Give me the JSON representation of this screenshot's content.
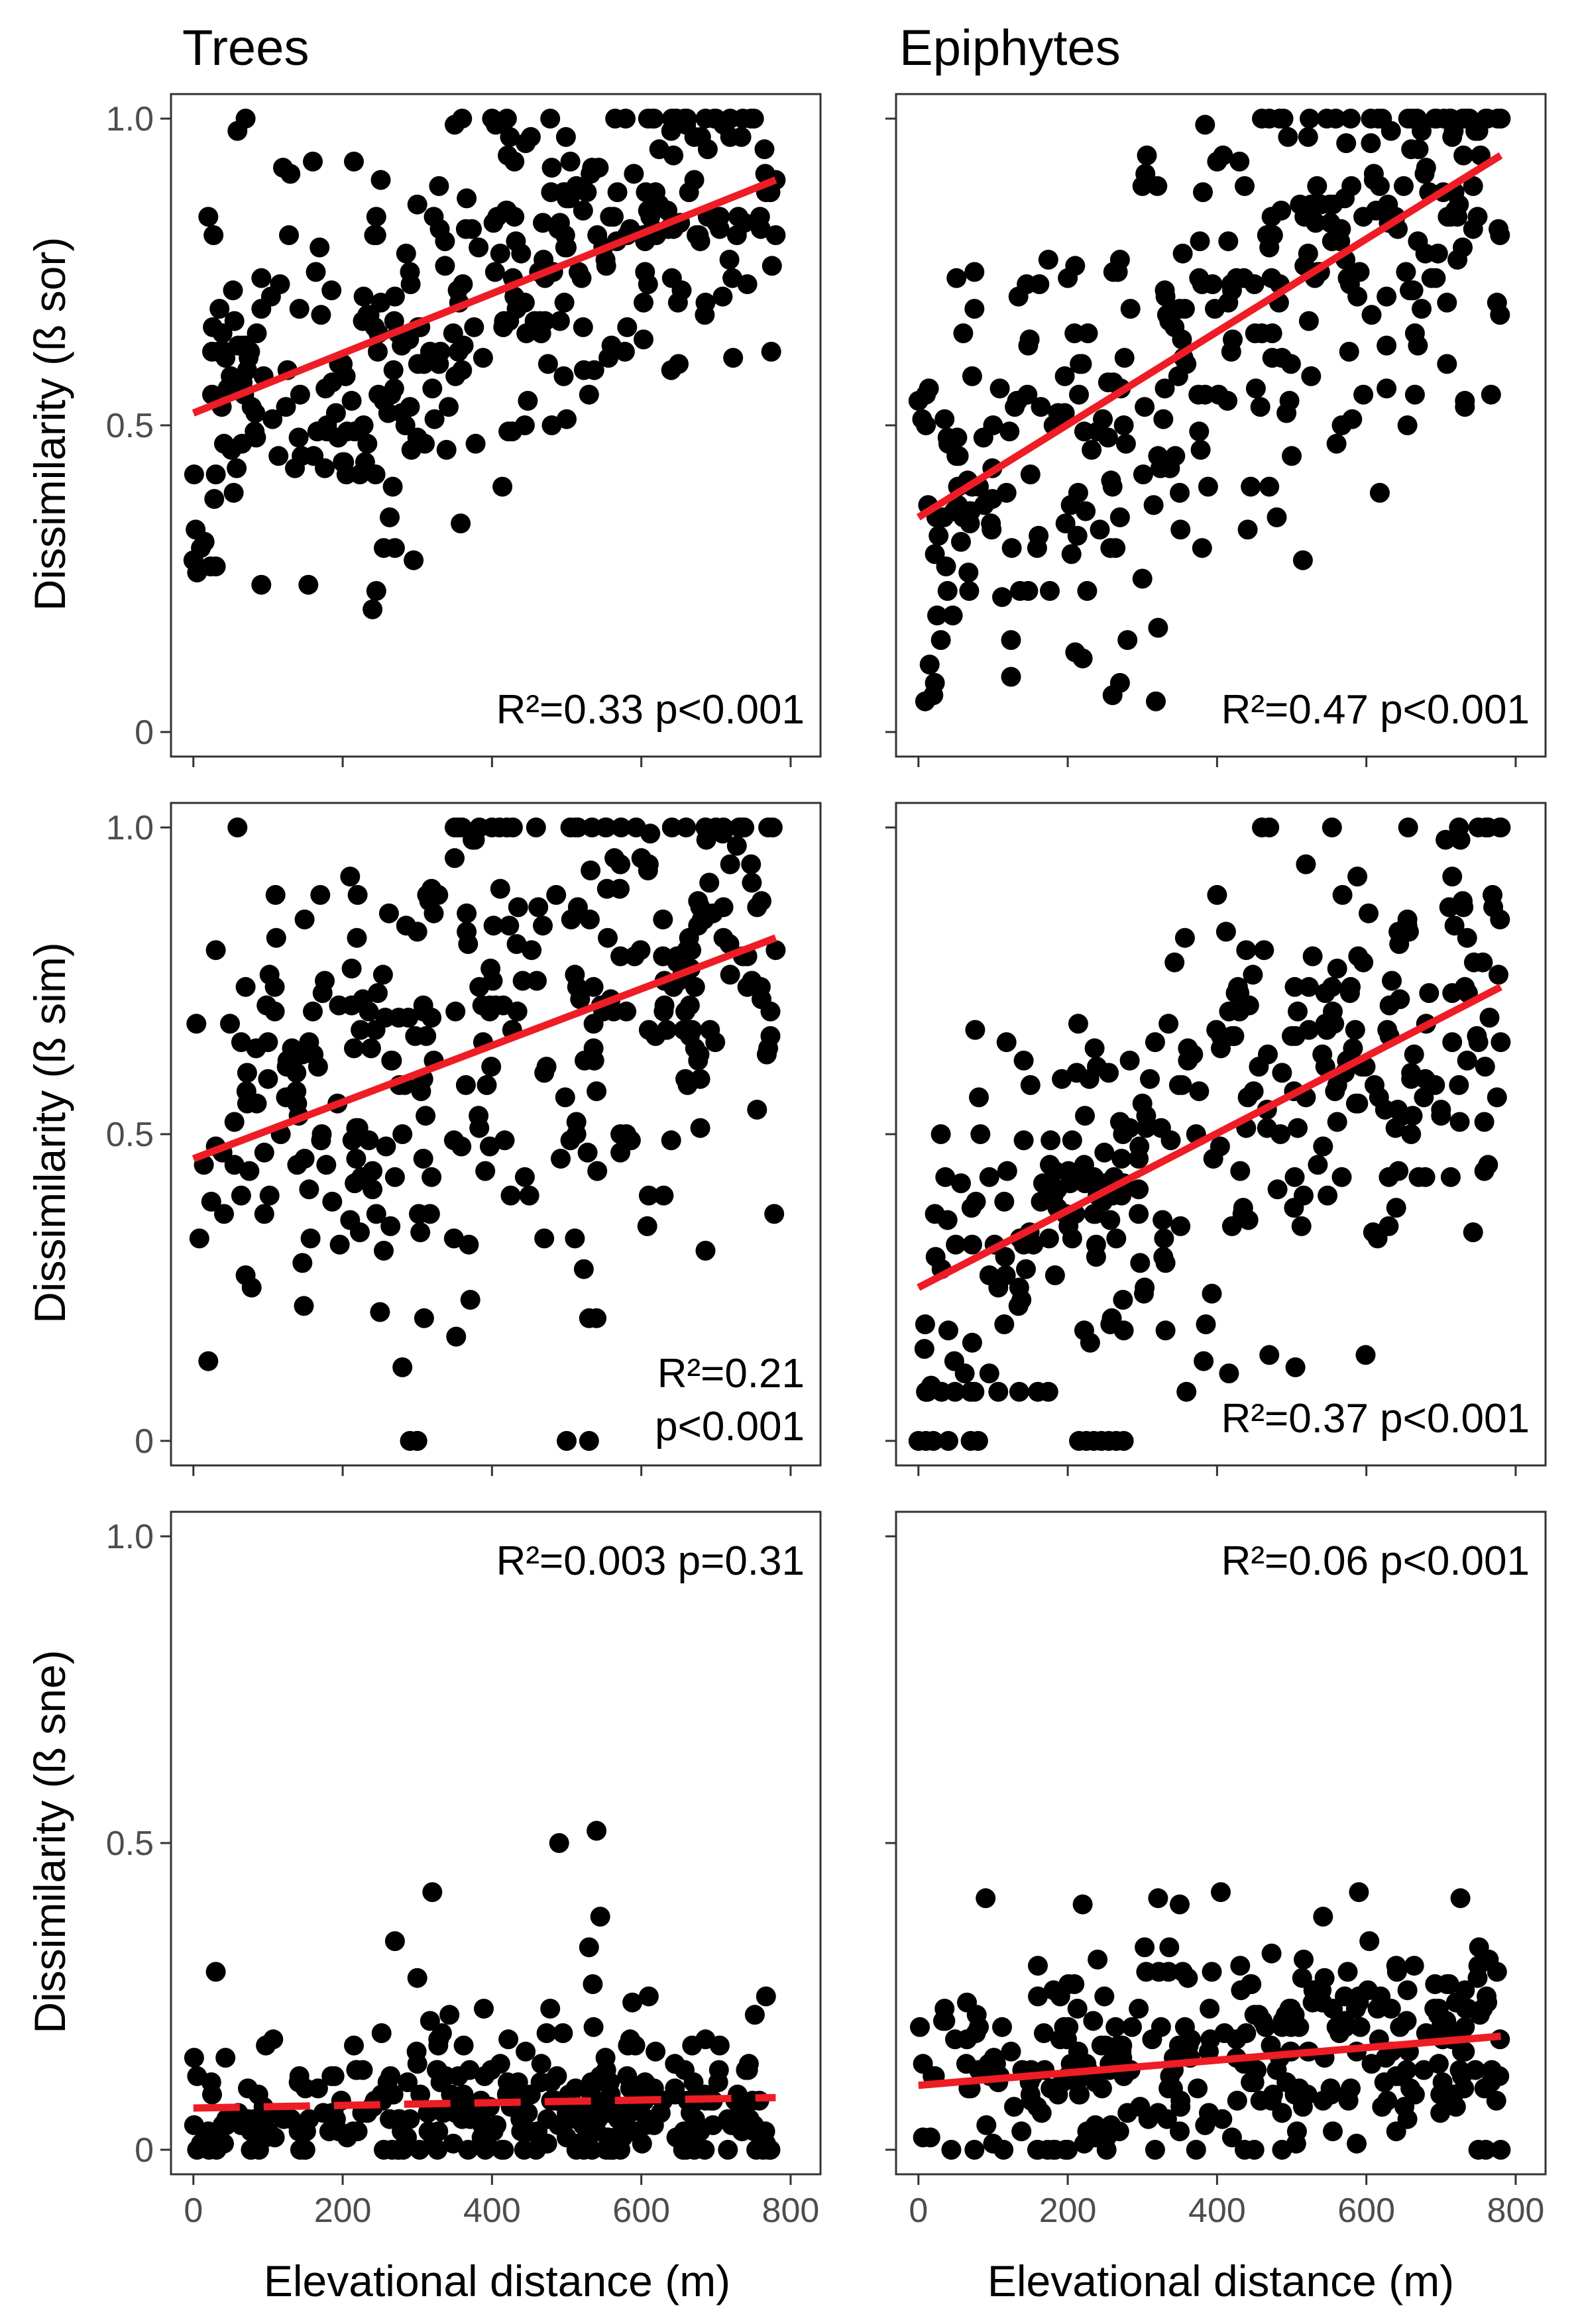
{
  "figure": {
    "column_titles": [
      "Trees",
      "Epiphytes"
    ],
    "x_axis_label": "Elevational distance (m)",
    "row_y_labels": [
      "Dissimilarity (ß sor)",
      "Dissimilarity (ß sim)",
      "Dissimilarity (ß sne)"
    ],
    "point_color": "#000000",
    "fit_color": "#ee1c25"
  },
  "chart_data": [
    {
      "type": "scatter",
      "id": "trees-sor",
      "column": "Trees",
      "ylabel": "Dissimilarity (ß sor)",
      "xlabel": "",
      "xlim": [
        -30,
        840
      ],
      "ylim": [
        -0.04,
        1.04
      ],
      "xticks": [
        0,
        200,
        400,
        600,
        800
      ],
      "yticks": [
        0,
        0.5,
        1.0
      ],
      "ytick_labels": [
        "0",
        "0.5",
        "1.0"
      ],
      "annotation": "R²=0.33 p<0.001",
      "fit": {
        "x": [
          0,
          780
        ],
        "y": [
          0.52,
          0.9
        ],
        "style": "solid"
      },
      "scatter_params": {
        "n": 300,
        "seed": 11,
        "x_max": 780,
        "x_power": 0.9,
        "noise": 0.14,
        "min": 0.19,
        "max": 1.0,
        "round": 0
      },
      "points": [
        [
          0,
          0.28
        ],
        [
          5,
          0.26
        ],
        [
          10,
          0.3
        ],
        [
          20,
          0.84
        ],
        [
          25,
          0.62
        ],
        [
          30,
          0.27
        ],
        [
          120,
          0.92
        ],
        [
          130,
          0.91
        ],
        [
          160,
          0.93
        ],
        [
          200,
          0.44
        ],
        [
          205,
          0.42
        ],
        [
          215,
          0.93
        ],
        [
          240,
          0.2
        ],
        [
          245,
          0.23
        ],
        [
          255,
          0.3
        ],
        [
          270,
          0.3
        ],
        [
          295,
          0.28
        ],
        [
          300,
          0.86
        ],
        [
          350,
          0.99
        ],
        [
          360,
          1.0
        ],
        [
          400,
          1.0
        ],
        [
          405,
          0.99
        ],
        [
          420,
          1.0
        ],
        [
          430,
          0.93
        ],
        [
          480,
          0.5
        ],
        [
          500,
          0.51
        ],
        [
          530,
          0.55
        ],
        [
          640,
          0.59
        ],
        [
          650,
          0.6
        ],
        [
          660,
          0.99
        ],
        [
          700,
          1.0
        ],
        [
          710,
          0.99
        ],
        [
          760,
          0.82
        ],
        [
          780,
          0.9
        ],
        [
          730,
          0.84
        ]
      ]
    },
    {
      "type": "scatter",
      "id": "epiphytes-sor",
      "column": "Epiphytes",
      "ylabel": "",
      "xlabel": "",
      "xlim": [
        -30,
        840
      ],
      "ylim": [
        -0.04,
        1.04
      ],
      "xticks": [
        0,
        200,
        400,
        600,
        800
      ],
      "yticks": [
        0,
        0.5,
        1.0
      ],
      "ytick_labels": [
        "",
        "",
        ""
      ],
      "annotation": "R²=0.47 p<0.001",
      "fit": {
        "x": [
          0,
          780
        ],
        "y": [
          0.35,
          0.94
        ],
        "style": "solid"
      },
      "scatter_params": {
        "n": 300,
        "seed": 23,
        "x_max": 780,
        "x_power": 0.95,
        "noise": 0.17,
        "min": 0.05,
        "max": 1.0,
        "round": 0
      },
      "points": [
        [
          20,
          0.06
        ],
        [
          15,
          0.11
        ],
        [
          30,
          0.15
        ],
        [
          0,
          0.54
        ],
        [
          10,
          0.55
        ],
        [
          60,
          0.65
        ],
        [
          75,
          0.69
        ],
        [
          200,
          0.74
        ],
        [
          210,
          0.76
        ],
        [
          220,
          0.12
        ],
        [
          260,
          0.06
        ],
        [
          270,
          0.08
        ],
        [
          280,
          0.15
        ],
        [
          300,
          0.25
        ],
        [
          300,
          0.89
        ],
        [
          320,
          0.89
        ],
        [
          400,
          0.93
        ],
        [
          430,
          0.93
        ],
        [
          460,
          1.0
        ],
        [
          470,
          1.0
        ],
        [
          470,
          0.4
        ],
        [
          480,
          0.35
        ],
        [
          500,
          0.45
        ],
        [
          580,
          0.89
        ],
        [
          650,
          0.89
        ],
        [
          730,
          0.94
        ],
        [
          750,
          0.98
        ],
        [
          760,
          1.0
        ],
        [
          780,
          1.0
        ]
      ]
    },
    {
      "type": "scatter",
      "id": "trees-sim",
      "column": "Trees",
      "ylabel": "Dissimilarity (ß sim)",
      "xlabel": "",
      "xlim": [
        -30,
        840
      ],
      "ylim": [
        -0.04,
        1.04
      ],
      "xticks": [
        0,
        200,
        400,
        600,
        800
      ],
      "yticks": [
        0,
        0.5,
        1.0
      ],
      "ytick_labels": [
        "0",
        "0.5",
        "1.0"
      ],
      "annotation_lines": [
        "R²=0.21",
        "p<0.001"
      ],
      "fit": {
        "x": [
          0,
          780
        ],
        "y": [
          0.46,
          0.82
        ],
        "style": "solid"
      },
      "scatter_params": {
        "n": 300,
        "seed": 37,
        "x_max": 780,
        "x_power": 0.9,
        "noise": 0.19,
        "min": 0.12,
        "max": 1.0,
        "round": 0
      },
      "points": [
        [
          20,
          0.13
        ],
        [
          30,
          0.8
        ],
        [
          110,
          0.89
        ],
        [
          170,
          0.89
        ],
        [
          210,
          0.92
        ],
        [
          290,
          0.0
        ],
        [
          300,
          0.0
        ],
        [
          300,
          0.0
        ],
        [
          350,
          1.0
        ],
        [
          360,
          1.0
        ],
        [
          400,
          1.0
        ],
        [
          410,
          1.0
        ],
        [
          420,
          1.0
        ],
        [
          470,
          0.33
        ],
        [
          500,
          0.0
        ],
        [
          530,
          0.0
        ],
        [
          530,
          0.2
        ],
        [
          540,
          0.2
        ],
        [
          610,
          0.4
        ],
        [
          630,
          0.4
        ],
        [
          660,
          1.0
        ],
        [
          700,
          1.0
        ],
        [
          710,
          1.0
        ],
        [
          780,
          0.8
        ],
        [
          760,
          0.74
        ]
      ]
    },
    {
      "type": "scatter",
      "id": "epiphytes-sim",
      "column": "Epiphytes",
      "ylabel": "",
      "xlabel": "",
      "xlim": [
        -30,
        840
      ],
      "ylim": [
        -0.04,
        1.04
      ],
      "xticks": [
        0,
        200,
        400,
        600,
        800
      ],
      "yticks": [
        0,
        0.5,
        1.0
      ],
      "ytick_labels": [
        "",
        "",
        ""
      ],
      "annotation": "R²=0.37 p<0.001",
      "fit": {
        "x": [
          0,
          780
        ],
        "y": [
          0.25,
          0.74
        ],
        "style": "solid"
      },
      "scatter_params": {
        "n": 300,
        "seed": 53,
        "x_max": 780,
        "x_power": 0.95,
        "noise": 0.17,
        "min": 0.08,
        "max": 1.0,
        "round": 0
      },
      "points": [
        [
          0,
          0.0
        ],
        [
          10,
          0.0
        ],
        [
          20,
          0.0
        ],
        [
          40,
          0.0
        ],
        [
          70,
          0.0
        ],
        [
          80,
          0.0
        ],
        [
          215,
          0.0
        ],
        [
          225,
          0.0
        ],
        [
          235,
          0.0
        ],
        [
          245,
          0.0
        ],
        [
          255,
          0.0
        ],
        [
          265,
          0.0
        ],
        [
          275,
          0.0
        ],
        [
          460,
          1.0
        ],
        [
          470,
          1.0
        ],
        [
          470,
          0.14
        ],
        [
          400,
          0.89
        ],
        [
          750,
          1.0
        ],
        [
          760,
          1.0
        ],
        [
          780,
          1.0
        ],
        [
          770,
          0.87
        ],
        [
          730,
          0.87
        ],
        [
          670,
          0.43
        ]
      ]
    },
    {
      "type": "scatter",
      "id": "trees-sne",
      "column": "Trees",
      "ylabel": "Dissimilarity (ß sne)",
      "xlabel": "Elevational distance (m)",
      "xlim": [
        -30,
        840
      ],
      "ylim": [
        -0.04,
        1.04
      ],
      "xticks": [
        0,
        200,
        400,
        600,
        800
      ],
      "yticks": [
        0,
        0.5,
        1.0
      ],
      "ytick_labels": [
        "0",
        "0.5",
        "1.0"
      ],
      "xtick_labels": [
        "0",
        "200",
        "400",
        "600",
        "800"
      ],
      "annotation": "R²=0.003 p=0.31",
      "fit": {
        "x": [
          0,
          780
        ],
        "y": [
          0.068,
          0.085
        ],
        "style": "dashed"
      },
      "scatter_params": {
        "n": 300,
        "seed": 71,
        "x_max": 780,
        "x_power": 0.95,
        "noise": 0.05,
        "min": 0.0,
        "max": 0.3,
        "round": 0,
        "skew": true,
        "base": 0.06
      },
      "points": [
        [
          320,
          0.42
        ],
        [
          490,
          0.5
        ],
        [
          540,
          0.52
        ],
        [
          545,
          0.38
        ],
        [
          530,
          0.33
        ],
        [
          535,
          0.27
        ],
        [
          270,
          0.34
        ],
        [
          300,
          0.28
        ],
        [
          30,
          0.29
        ],
        [
          610,
          0.25
        ]
      ]
    },
    {
      "type": "scatter",
      "id": "epiphytes-sne",
      "column": "Epiphytes",
      "ylabel": "",
      "xlabel": "Elevational distance (m)",
      "xlim": [
        -30,
        840
      ],
      "ylim": [
        -0.04,
        1.04
      ],
      "xticks": [
        0,
        200,
        400,
        600,
        800
      ],
      "yticks": [
        0,
        0.5,
        1.0
      ],
      "ytick_labels": [
        "",
        "",
        ""
      ],
      "xtick_labels": [
        "0",
        "200",
        "400",
        "600",
        "800"
      ],
      "annotation": "R²=0.06 p<0.001",
      "fit": {
        "x": [
          0,
          780
        ],
        "y": [
          0.105,
          0.185
        ],
        "style": "solid"
      },
      "scatter_params": {
        "n": 300,
        "seed": 89,
        "x_max": 780,
        "x_power": 0.95,
        "noise": 0.09,
        "min": 0.0,
        "max": 0.42,
        "round": 0
      },
      "points": [
        [
          90,
          0.41
        ],
        [
          405,
          0.42
        ],
        [
          220,
          0.4
        ],
        [
          350,
          0.4
        ],
        [
          750,
          0.0
        ],
        [
          780,
          0.0
        ],
        [
          760,
          0.0
        ],
        [
          200,
          0.0
        ]
      ]
    }
  ]
}
